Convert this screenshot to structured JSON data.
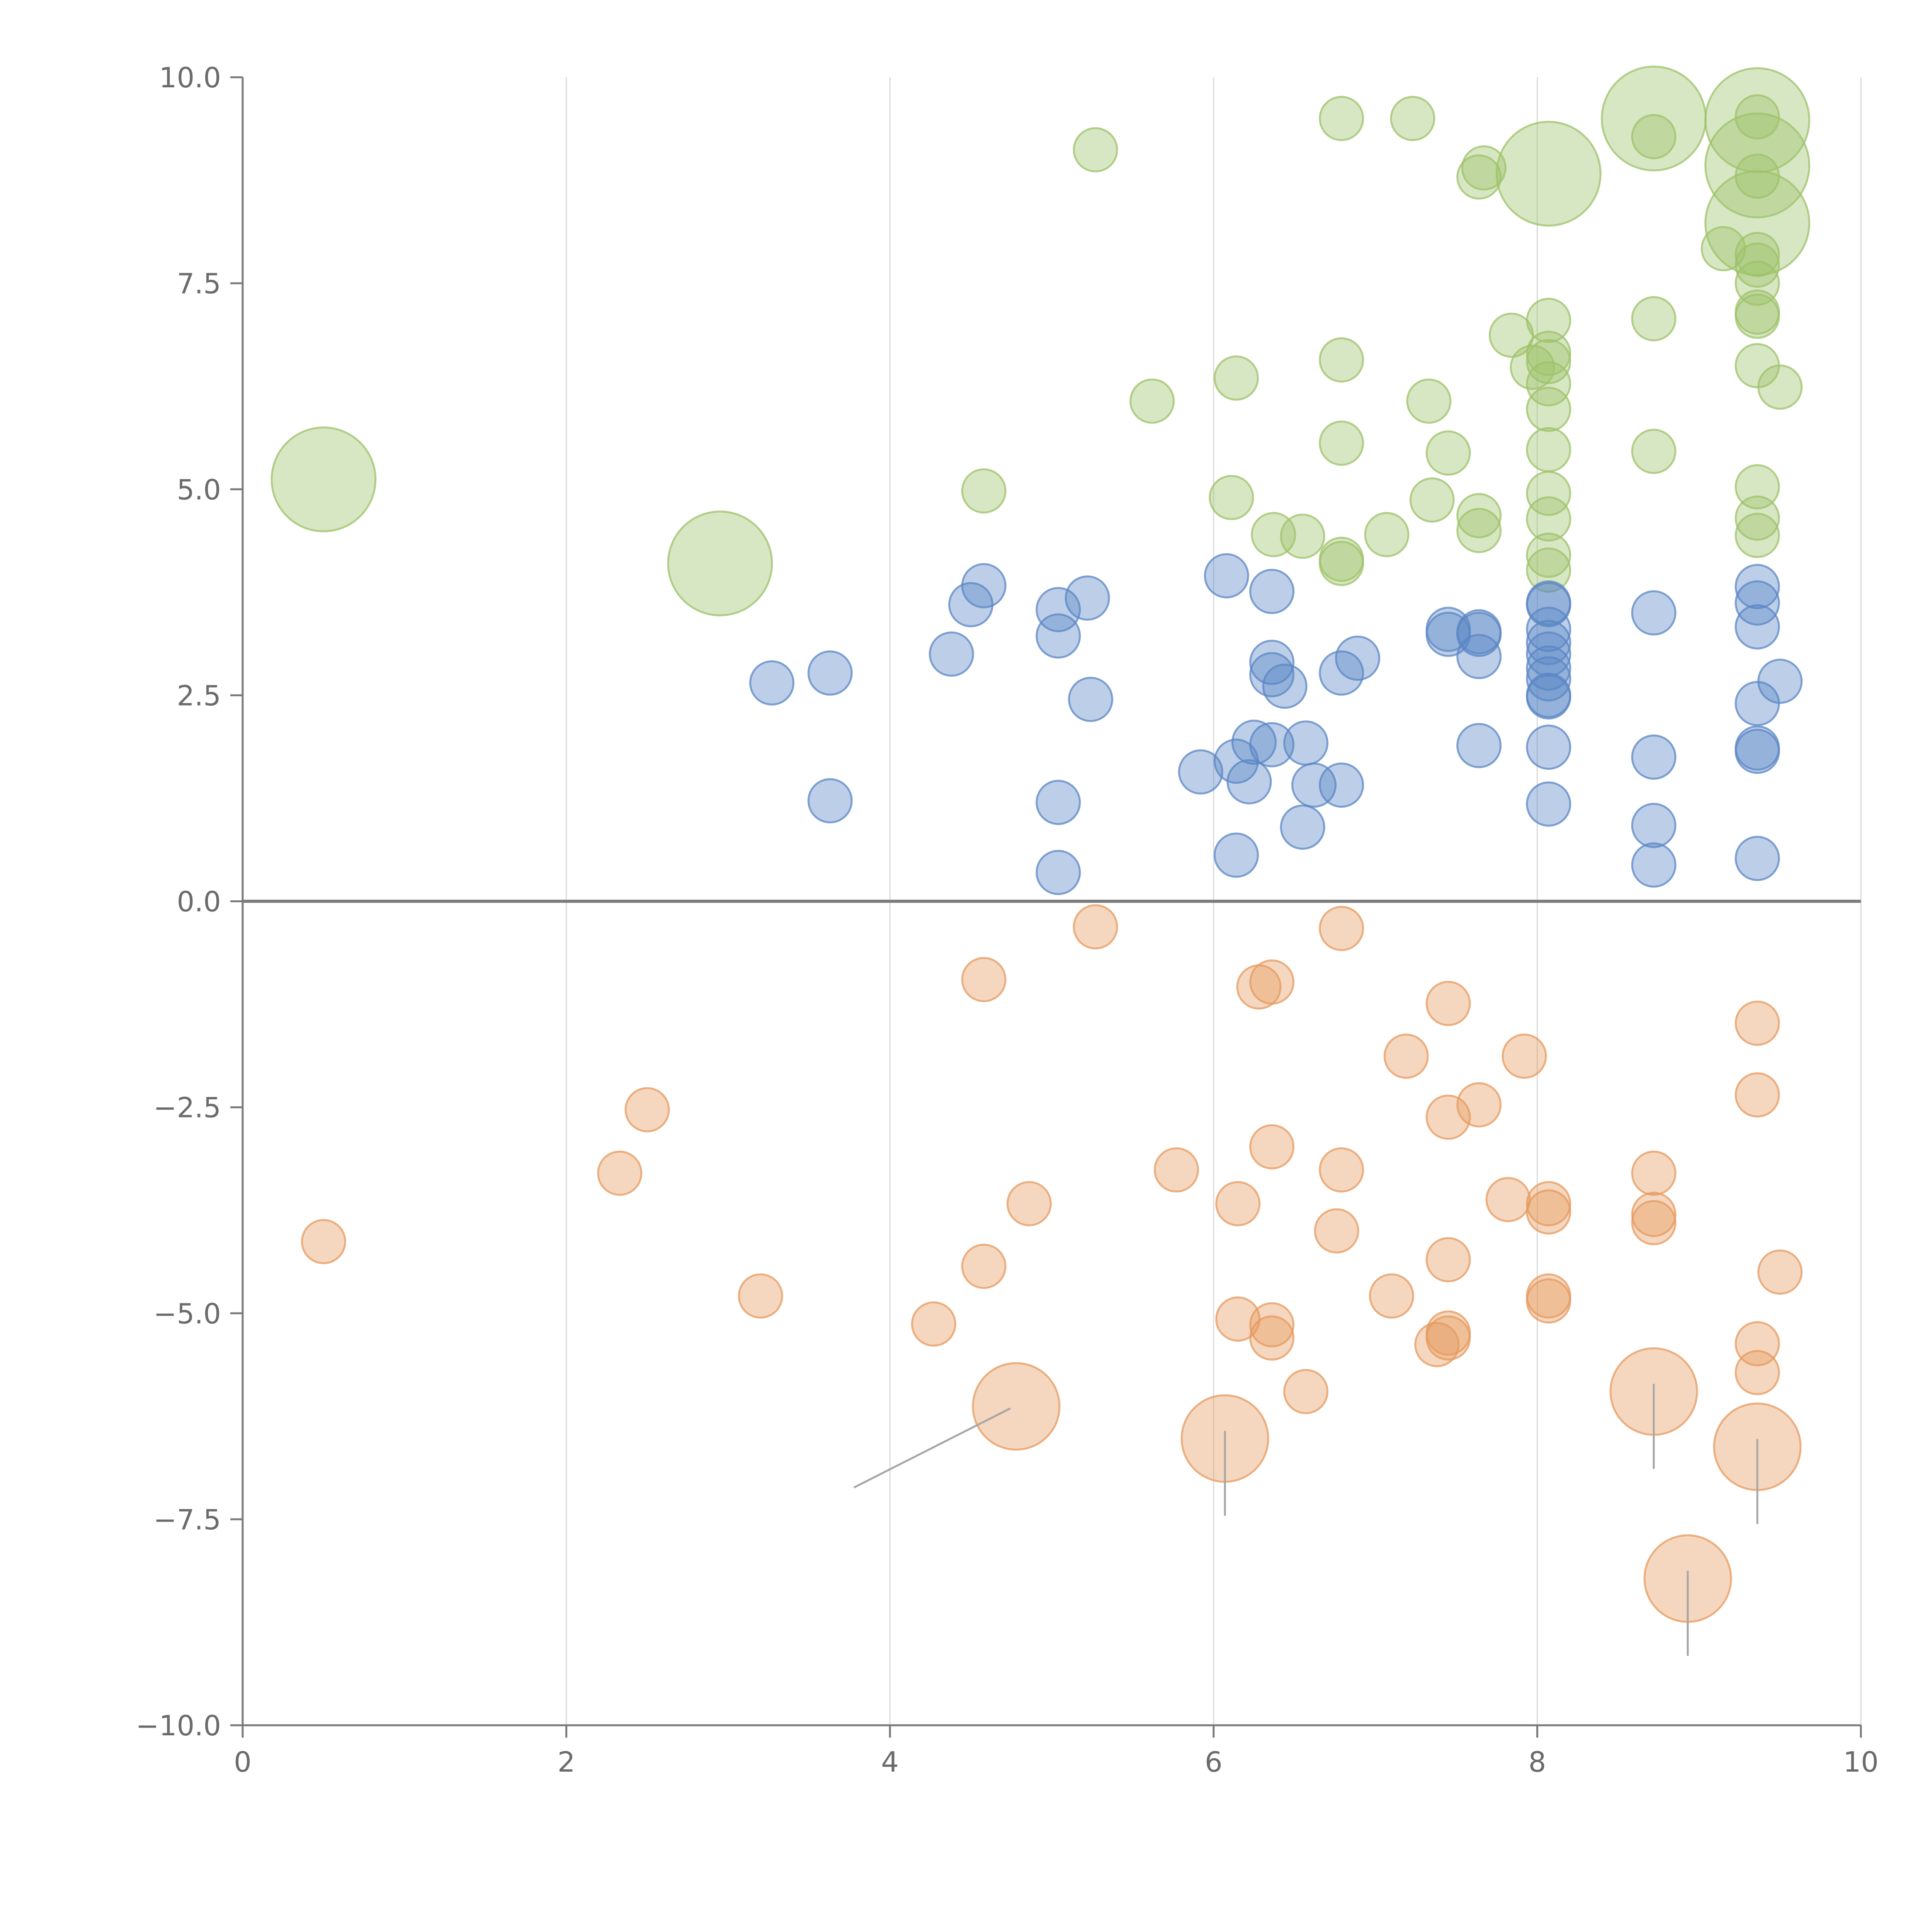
{
  "chart_data": {
    "type": "scatter",
    "title": "",
    "xlabel": "",
    "ylabel": "",
    "xlim": [
      0,
      10
    ],
    "ylim": [
      -10,
      10
    ],
    "grid": "vertical gridlines at x ticks",
    "x_ticks": [
      0,
      2,
      4,
      6,
      8,
      10
    ],
    "x_tick_labels": [
      "0",
      "2",
      "4",
      "6",
      "8",
      "10"
    ],
    "y_ticks": [
      10,
      7.5,
      5,
      2.5,
      0,
      -2.5,
      -5,
      -7.5,
      -10
    ],
    "y_tick_labels": [
      "10.0",
      "7.5",
      "5.0",
      "2.5",
      "0.0",
      "−2.5",
      "−5.0",
      "−7.5",
      "−10.0"
    ],
    "reference_line": {
      "y": 0
    },
    "series": [
      {
        "name": "green",
        "color": "#9dc26a",
        "opacity": 0.4,
        "points": [
          [
            0.5,
            5.12,
            2.4
          ],
          [
            2.95,
            4.1,
            2.4
          ],
          [
            4.58,
            4.98,
            1
          ],
          [
            5.27,
            9.12,
            1
          ],
          [
            5.62,
            6.07,
            1
          ],
          [
            6.11,
            4.9,
            1
          ],
          [
            6.14,
            6.35,
            1
          ],
          [
            6.37,
            4.45,
            1
          ],
          [
            6.55,
            4.43,
            1
          ],
          [
            6.79,
            9.5,
            1
          ],
          [
            6.79,
            6.57,
            1
          ],
          [
            6.79,
            5.56,
            1
          ],
          [
            6.79,
            4.15,
            1
          ],
          [
            6.79,
            4.1,
            1
          ],
          [
            7.07,
            4.45,
            1
          ],
          [
            7.23,
            9.5,
            1
          ],
          [
            7.33,
            6.07,
            1
          ],
          [
            7.35,
            4.87,
            1
          ],
          [
            7.45,
            5.44,
            1
          ],
          [
            7.64,
            8.79,
            1
          ],
          [
            7.67,
            8.9,
            1
          ],
          [
            7.64,
            4.68,
            1
          ],
          [
            7.64,
            4.5,
            1
          ],
          [
            7.84,
            6.87,
            1
          ],
          [
            7.97,
            6.48,
            1
          ],
          [
            8.07,
            8.83,
            2.4
          ],
          [
            8.07,
            7.05,
            1
          ],
          [
            8.07,
            6.65,
            1
          ],
          [
            8.07,
            6.55,
            1
          ],
          [
            8.07,
            6.28,
            1
          ],
          [
            8.07,
            5.97,
            1
          ],
          [
            8.07,
            5.48,
            1
          ],
          [
            8.07,
            4.95,
            1
          ],
          [
            8.07,
            4.64,
            1
          ],
          [
            8.07,
            4.2,
            1
          ],
          [
            8.07,
            4.02,
            1
          ],
          [
            8.72,
            9.5,
            2.4
          ],
          [
            8.72,
            9.28,
            1
          ],
          [
            8.72,
            7.07,
            1
          ],
          [
            8.72,
            5.46,
            1
          ],
          [
            9.15,
            7.92,
            1
          ],
          [
            9.36,
            9.48,
            2.4
          ],
          [
            9.36,
            8.93,
            2.4
          ],
          [
            9.36,
            8.23,
            2.4
          ],
          [
            9.36,
            9.52,
            1
          ],
          [
            9.36,
            8.8,
            1
          ],
          [
            9.36,
            7.85,
            1
          ],
          [
            9.36,
            7.72,
            1
          ],
          [
            9.36,
            7.5,
            1
          ],
          [
            9.36,
            7.15,
            1
          ],
          [
            9.36,
            7.1,
            1
          ],
          [
            9.36,
            6.5,
            1
          ],
          [
            9.36,
            5.03,
            1
          ],
          [
            9.36,
            4.65,
            1
          ],
          [
            9.36,
            4.44,
            1
          ],
          [
            9.5,
            6.24,
            1
          ]
        ]
      },
      {
        "name": "blue",
        "color": "#5b86c5",
        "opacity": 0.4,
        "points": [
          [
            3.27,
            2.65,
            1
          ],
          [
            3.63,
            2.77,
            1
          ],
          [
            3.63,
            1.22,
            1
          ],
          [
            4.38,
            3.0,
            1
          ],
          [
            4.5,
            3.6,
            1
          ],
          [
            4.58,
            3.83,
            1
          ],
          [
            5.04,
            3.54,
            1
          ],
          [
            5.04,
            3.22,
            1
          ],
          [
            5.04,
            1.2,
            1
          ],
          [
            5.04,
            0.35,
            1
          ],
          [
            5.22,
            3.68,
            1
          ],
          [
            5.24,
            2.45,
            1
          ],
          [
            5.92,
            1.57,
            1
          ],
          [
            6.08,
            3.95,
            1
          ],
          [
            6.14,
            1.7,
            1
          ],
          [
            6.14,
            0.56,
            1
          ],
          [
            6.22,
            1.45,
            1
          ],
          [
            6.25,
            1.93,
            1
          ],
          [
            6.36,
            3.76,
            1
          ],
          [
            6.36,
            2.9,
            1
          ],
          [
            6.36,
            2.75,
            1
          ],
          [
            6.36,
            1.9,
            1
          ],
          [
            6.44,
            2.61,
            1
          ],
          [
            6.55,
            0.9,
            1
          ],
          [
            6.57,
            1.92,
            1
          ],
          [
            6.62,
            1.41,
            1
          ],
          [
            6.79,
            2.77,
            1
          ],
          [
            6.79,
            1.41,
            1
          ],
          [
            6.89,
            2.95,
            1
          ],
          [
            7.45,
            3.3,
            1
          ],
          [
            7.45,
            3.24,
            1
          ],
          [
            7.64,
            3.27,
            1
          ],
          [
            7.64,
            3.24,
            1
          ],
          [
            7.64,
            2.97,
            1
          ],
          [
            7.64,
            1.89,
            1
          ],
          [
            8.07,
            3.62,
            1
          ],
          [
            8.07,
            3.6,
            1
          ],
          [
            8.07,
            3.3,
            1
          ],
          [
            8.07,
            3.14,
            1
          ],
          [
            8.07,
            3.0,
            1
          ],
          [
            8.07,
            2.83,
            1
          ],
          [
            8.07,
            2.7,
            1
          ],
          [
            8.07,
            2.5,
            1
          ],
          [
            8.07,
            2.48,
            1
          ],
          [
            8.07,
            1.87,
            1
          ],
          [
            8.07,
            1.18,
            1
          ],
          [
            8.72,
            3.5,
            1
          ],
          [
            8.72,
            1.75,
            1
          ],
          [
            8.72,
            0.92,
            1
          ],
          [
            8.72,
            0.44,
            1
          ],
          [
            9.36,
            3.82,
            1
          ],
          [
            9.36,
            3.62,
            1
          ],
          [
            9.36,
            3.33,
            1
          ],
          [
            9.36,
            2.4,
            1
          ],
          [
            9.36,
            1.86,
            1
          ],
          [
            9.36,
            1.82,
            1
          ],
          [
            9.36,
            0.52,
            1
          ],
          [
            9.5,
            2.67,
            1
          ]
        ]
      },
      {
        "name": "orange",
        "color": "#e59a5f",
        "opacity": 0.4,
        "points": [
          [
            0.5,
            -4.13,
            1
          ],
          [
            2.33,
            -3.3,
            1
          ],
          [
            2.5,
            -2.53,
            1
          ],
          [
            3.2,
            -4.79,
            1
          ],
          [
            4.27,
            -5.13,
            1
          ],
          [
            4.58,
            -0.95,
            1
          ],
          [
            4.58,
            -4.43,
            1
          ],
          [
            4.78,
            -6.13,
            2
          ],
          [
            4.86,
            -3.67,
            1
          ],
          [
            5.27,
            -0.31,
            1
          ],
          [
            5.77,
            -3.26,
            1
          ],
          [
            6.07,
            -6.52,
            2
          ],
          [
            6.15,
            -3.67,
            1
          ],
          [
            6.15,
            -5.07,
            1
          ],
          [
            6.28,
            -1.04,
            1
          ],
          [
            6.36,
            -0.98,
            1
          ],
          [
            6.36,
            -2.98,
            1
          ],
          [
            6.36,
            -5.14,
            1
          ],
          [
            6.36,
            -5.3,
            1
          ],
          [
            6.57,
            -5.95,
            1
          ],
          [
            6.76,
            -4.0,
            1
          ],
          [
            6.79,
            -0.33,
            1
          ],
          [
            6.79,
            -3.26,
            1
          ],
          [
            7.1,
            -4.79,
            1
          ],
          [
            7.19,
            -1.88,
            1
          ],
          [
            7.38,
            -5.38,
            1
          ],
          [
            7.45,
            -1.24,
            1
          ],
          [
            7.45,
            -2.62,
            1
          ],
          [
            7.45,
            -4.35,
            1
          ],
          [
            7.45,
            -5.24,
            1
          ],
          [
            7.45,
            -5.3,
            1
          ],
          [
            7.64,
            -2.47,
            1
          ],
          [
            7.82,
            -3.62,
            1
          ],
          [
            7.92,
            -1.88,
            1
          ],
          [
            8.07,
            -3.67,
            1
          ],
          [
            8.07,
            -3.77,
            1
          ],
          [
            8.07,
            -4.79,
            1
          ],
          [
            8.07,
            -4.85,
            1
          ],
          [
            8.72,
            -3.3,
            1
          ],
          [
            8.72,
            -3.8,
            1
          ],
          [
            8.72,
            -3.9,
            1
          ],
          [
            8.72,
            -5.95,
            2
          ],
          [
            8.93,
            -8.22,
            2
          ],
          [
            9.36,
            -1.48,
            1
          ],
          [
            9.36,
            -2.35,
            1
          ],
          [
            9.36,
            -5.37,
            1
          ],
          [
            9.36,
            -5.72,
            1
          ],
          [
            9.36,
            -6.62,
            2
          ],
          [
            9.5,
            -4.5,
            1
          ]
        ]
      }
    ]
  }
}
